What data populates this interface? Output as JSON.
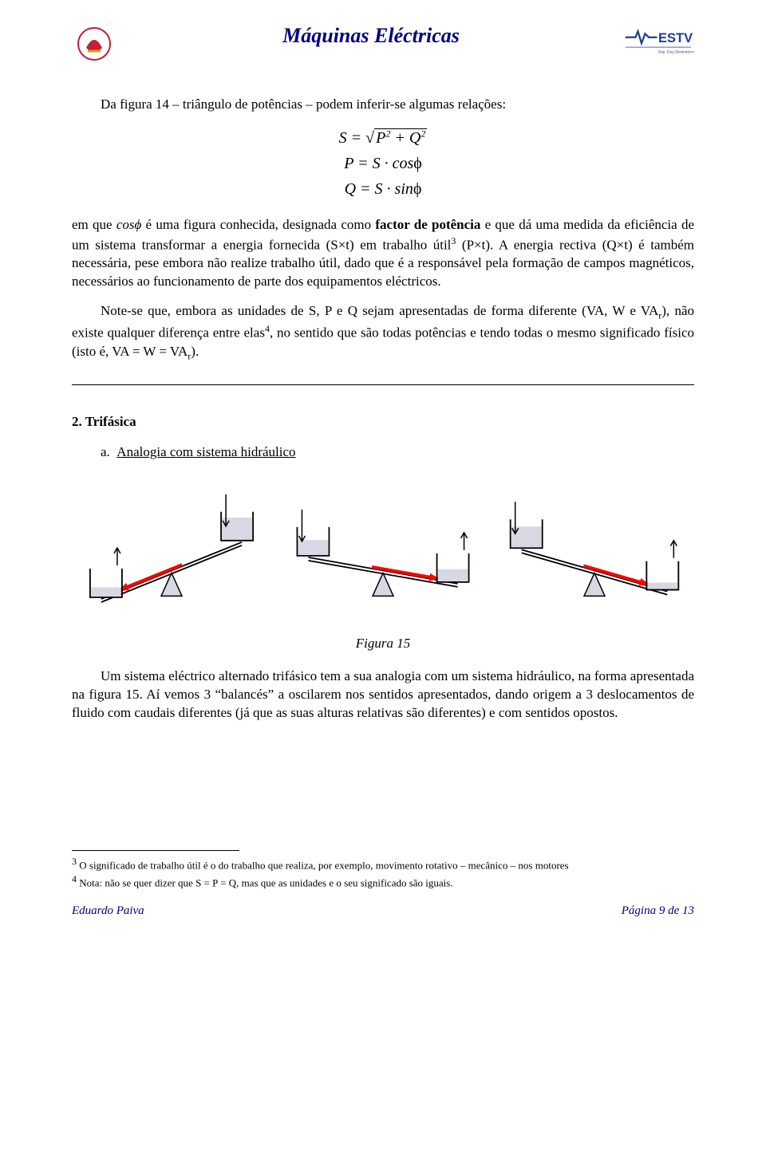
{
  "header": {
    "title": "Máquinas Eléctricas",
    "logo_left_colors": {
      "red": "#c41e3a",
      "gold": "#d4a017"
    },
    "logo_right_colors": {
      "blue": "#1b3f8b",
      "red": "#c41e3a"
    },
    "logo_right_sub": "Dep. Eng. Electrotécnica"
  },
  "paragraphs": {
    "p1": "Da figura 14 – triângulo de potências – podem inferir-se algumas relações:",
    "p2_a": "em que ",
    "p2_cos": "cosϕ",
    "p2_b": " é uma figura conhecida, designada como ",
    "p2_factor": "factor de potência",
    "p2_c": " e que dá uma medida da eficiência de um sistema transformar a energia fornecida (S×t) em trabalho útil",
    "p2_d": " (P×t). A energia rectiva (Q×t) é também necessária, pese embora não realize trabalho útil, dado que é a responsável pela formação de campos magnéticos, necessários ao funcionamento de parte dos equipamentos eléctricos.",
    "p3_a": "Note-se que, embora as unidades de S, P e Q sejam apresentadas de forma diferente (VA, W e VA",
    "p3_b": "), não existe qualquer diferença entre elas",
    "p3_c": ", no sentido que são todas potências e tendo todas o mesmo significado físico (isto é, VA = W = VA",
    "p3_d": ")."
  },
  "equations": {
    "eq1": "S = √(P² + Q²)",
    "eq2": "P = S · cosϕ",
    "eq3": "Q = S · sinϕ"
  },
  "section2": {
    "heading": "2.  Trifásica",
    "sub_prefix": "a.",
    "sub_label": "Analogia com sistema hidráulico"
  },
  "figure": {
    "caption": "Figura 15",
    "colors": {
      "beam": "#000000",
      "container_stroke": "#000000",
      "container_fill": "#ffffff",
      "fluid": "#d8d8e4",
      "arrow": "#ff0000",
      "pivot_fill": "#d8d8e4"
    },
    "seesaws": [
      {
        "angle": -22,
        "left_level": 0.35,
        "right_level": 0.8,
        "arrow_dir": "left"
      },
      {
        "angle": 10,
        "left_level": 0.55,
        "right_level": 0.45,
        "arrow_dir": "right"
      },
      {
        "angle": 16,
        "left_level": 0.75,
        "right_level": 0.25,
        "arrow_dir": "right"
      }
    ]
  },
  "para_after_fig": "Um sistema eléctrico alternado trifásico tem a sua analogia com um sistema hidráulico, na forma apresentada na figura 15. Aí vemos 3 “balancés” a oscilarem nos sentidos apresentados, dando origem a 3 deslocamentos de fluido com caudais diferentes (já que as suas alturas relativas são diferentes) e com sentidos opostos.",
  "footnotes": {
    "f3": "O significado de trabalho útil é o do trabalho que realiza, por exemplo, movimento rotativo – mecânico – nos motores",
    "f4": "Nota: não se quer dizer que S = P = Q, mas que as unidades e o seu significado são iguais."
  },
  "footer": {
    "left": "Eduardo Paiva",
    "right": "Página 9 de 13"
  }
}
